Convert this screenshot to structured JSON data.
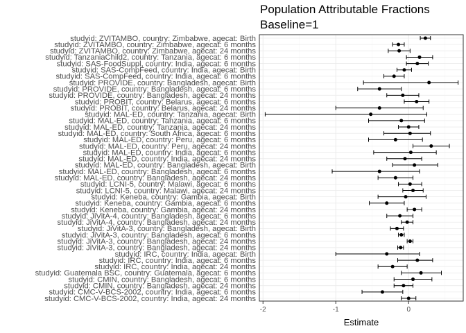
{
  "chart_data": {
    "type": "scatter",
    "title": "Population Attributable Fractions",
    "subtitle": "Baseline=1",
    "xlabel": "Estimate",
    "ylabel": "",
    "xlim": [
      -2.05,
      0.75
    ],
    "xticks": [
      -2,
      -1,
      0
    ],
    "grid": true,
    "legend": "none",
    "colors": {
      "panel_border": "#333333",
      "grid_major": "#ebebeb",
      "grid_minor": "#f5f5f5",
      "point": "#000000",
      "text": "#4d4d4d"
    },
    "points": [
      {
        "label": "studyid: ZVITAMBO, country: Zimbabwe, agecat: Birth",
        "estimate": 0.23,
        "lower": 0.16,
        "upper": 0.3
      },
      {
        "label": "studyid: ZVITAMBO, country: Zimbabwe, agecat: 6 months",
        "estimate": -0.14,
        "lower": -0.22,
        "upper": -0.06
      },
      {
        "label": "studyid: ZVITAMBO, country: Zimbabwe, agecat: 24 months",
        "estimate": -0.13,
        "lower": -0.28,
        "upper": 0.02
      },
      {
        "label": "studyid: TanzaniaChild2, country: Tanzania, agecat: 6 months",
        "estimate": 0.15,
        "lower": -0.03,
        "upper": 0.33
      },
      {
        "label": "studyid: SAS-FoodSuppl, country: India, agecat: 6 months",
        "estimate": 0.12,
        "lower": -0.03,
        "upper": 0.27
      },
      {
        "label": "studyid: SAS-CompFeed, country: India, agecat: Birth",
        "estimate": -0.06,
        "lower": -0.16,
        "upper": 0.04
      },
      {
        "label": "studyid: SAS-CompFeed, country: India, agecat: 6 months",
        "estimate": -0.2,
        "lower": -0.34,
        "upper": -0.06
      },
      {
        "label": "studyid: PROVIDE, country: Bangladesh, agecat: Birth",
        "estimate": 0.28,
        "lower": -0.62,
        "upper": 0.68
      },
      {
        "label": "studyid: PROVIDE, country: Bangladesh, agecat: 6 months",
        "estimate": -0.4,
        "lower": -0.7,
        "upper": -0.1
      },
      {
        "label": "studyid: PROVIDE, country: Bangladesh, agecat: 24 months",
        "estimate": -0.08,
        "lower": -0.3,
        "upper": 0.14
      },
      {
        "label": "studyid: PROBIT, country: Belarus, agecat: 6 months",
        "estimate": 0.11,
        "lower": -0.06,
        "upper": 0.28
      },
      {
        "label": "studyid: PROBIT, country: Belarus, agecat: 24 months",
        "estimate": -0.4,
        "lower": -1.0,
        "upper": 0.2
      },
      {
        "label": "studyid: MAL-ED, country: Tanzania, agecat: Birth",
        "estimate": -0.52,
        "lower": -1.97,
        "upper": 0.25
      },
      {
        "label": "studyid: MAL-ED, country: Tanzania, agecat: 6 months",
        "estimate": -0.1,
        "lower": -0.55,
        "upper": 0.22
      },
      {
        "label": "studyid: MAL-ED, country: Tanzania, agecat: 24 months",
        "estimate": 0.0,
        "lower": -0.14,
        "upper": 0.14
      },
      {
        "label": "studyid: MAL-ED, country: South Africa, agecat: 6 months",
        "estimate": 0.02,
        "lower": -0.34,
        "upper": 0.3
      },
      {
        "label": "studyid: MAL-ED, country: Peru, agecat: 6 months",
        "estimate": -0.18,
        "lower": -0.55,
        "upper": 0.19
      },
      {
        "label": "studyid: MAL-ED, country: Peru, agecat: 24 months",
        "estimate": 0.31,
        "lower": 0.06,
        "upper": 0.56
      },
      {
        "label": "studyid: MAL-ED, country: India, agecat: 6 months",
        "estimate": 0.03,
        "lower": -0.48,
        "upper": 0.38
      },
      {
        "label": "studyid: MAL-ED, country: India, agecat: 24 months",
        "estimate": -0.05,
        "lower": -0.3,
        "upper": 0.18
      },
      {
        "label": "studyid: MAL-ED, country: Bangladesh, agecat: Birth",
        "estimate": 0.08,
        "lower": -0.22,
        "upper": 0.4
      },
      {
        "label": "studyid: MAL-ED, country: Bangladesh, agecat: 6 months",
        "estimate": -0.4,
        "lower": -1.05,
        "upper": 0.15
      },
      {
        "label": "studyid: MAL-ED, country: Bangladesh, agecat: 24 months",
        "estimate": -0.18,
        "lower": -0.42,
        "upper": 0.06
      },
      {
        "label": "studyid: LCNI-5, country: Malawi, agecat: 6 months",
        "estimate": 0.02,
        "lower": -0.14,
        "upper": 0.18
      },
      {
        "label": "studyid: LCNI-5, country: Malawi, agecat: 24 months",
        "estimate": 0.06,
        "lower": -0.08,
        "upper": 0.2
      },
      {
        "label": "studyid: Keneba, country: Gambia, agecat: Birth",
        "estimate": -0.04,
        "lower": -0.42,
        "upper": 0.24
      },
      {
        "label": "studyid: Keneba, country: Gambia, agecat: 6 months",
        "estimate": -0.3,
        "lower": -0.54,
        "upper": -0.06
      },
      {
        "label": "studyid: Keneba, country: Gambia, agecat: 24 months",
        "estimate": 0.08,
        "lower": -0.02,
        "upper": 0.18
      },
      {
        "label": "studyid: JiVitA-4, country: Bangladesh, agecat: 6 months",
        "estimate": -0.12,
        "lower": -0.3,
        "upper": 0.06
      },
      {
        "label": "studyid: JiVitA-4, country: Bangladesh, agecat: 24 months",
        "estimate": -0.02,
        "lower": -0.1,
        "upper": 0.06
      },
      {
        "label": "studyid: JiVitA-3, country: Bangladesh, agecat: Birth",
        "estimate": -0.16,
        "lower": -0.25,
        "upper": -0.07
      },
      {
        "label": "studyid: JiVitA-3, country: Bangladesh, agecat: 6 months",
        "estimate": -0.1,
        "lower": -0.14,
        "upper": -0.06
      },
      {
        "label": "studyid: JiVitA-3, country: Bangladesh, agecat: 24 months",
        "estimate": 0.02,
        "lower": -0.02,
        "upper": 0.06
      },
      {
        "label": "studyid: JiVitA-3, country: Bangladesh, agecat: 24 months",
        "estimate": -0.11,
        "lower": -0.15,
        "upper": -0.07
      },
      {
        "label": "studyid: IRC, country: India, agecat: Birth",
        "estimate": -0.3,
        "lower": -1.0,
        "upper": 0.15
      },
      {
        "label": "studyid: IRC, country: India, agecat: 6 months",
        "estimate": 0.12,
        "lower": -0.15,
        "upper": 0.33
      },
      {
        "label": "studyid: IRC, country: India, agecat: 24 months",
        "estimate": -0.22,
        "lower": -0.42,
        "upper": -0.02
      },
      {
        "label": "studyid: Guatemala BSC, country: Guatemala, agecat: 6 months",
        "estimate": 0.17,
        "lower": -0.1,
        "upper": 0.45
      },
      {
        "label": "studyid: CMIN, country: Bangladesh, agecat: 6 months",
        "estimate": 0.06,
        "lower": -0.2,
        "upper": 0.32
      },
      {
        "label": "studyid: CMIN, country: Bangladesh, agecat: 24 months",
        "estimate": -0.07,
        "lower": -0.2,
        "upper": 0.06
      },
      {
        "label": "studyid: CMC-V-BCS-2002, country: India, agecat: 6 months",
        "estimate": -0.36,
        "lower": -0.64,
        "upper": -0.08
      },
      {
        "label": "studyid: CMC-V-BCS-2002, country: India, agecat: 24 months",
        "estimate": 0.0,
        "lower": -0.1,
        "upper": 0.1
      }
    ]
  }
}
